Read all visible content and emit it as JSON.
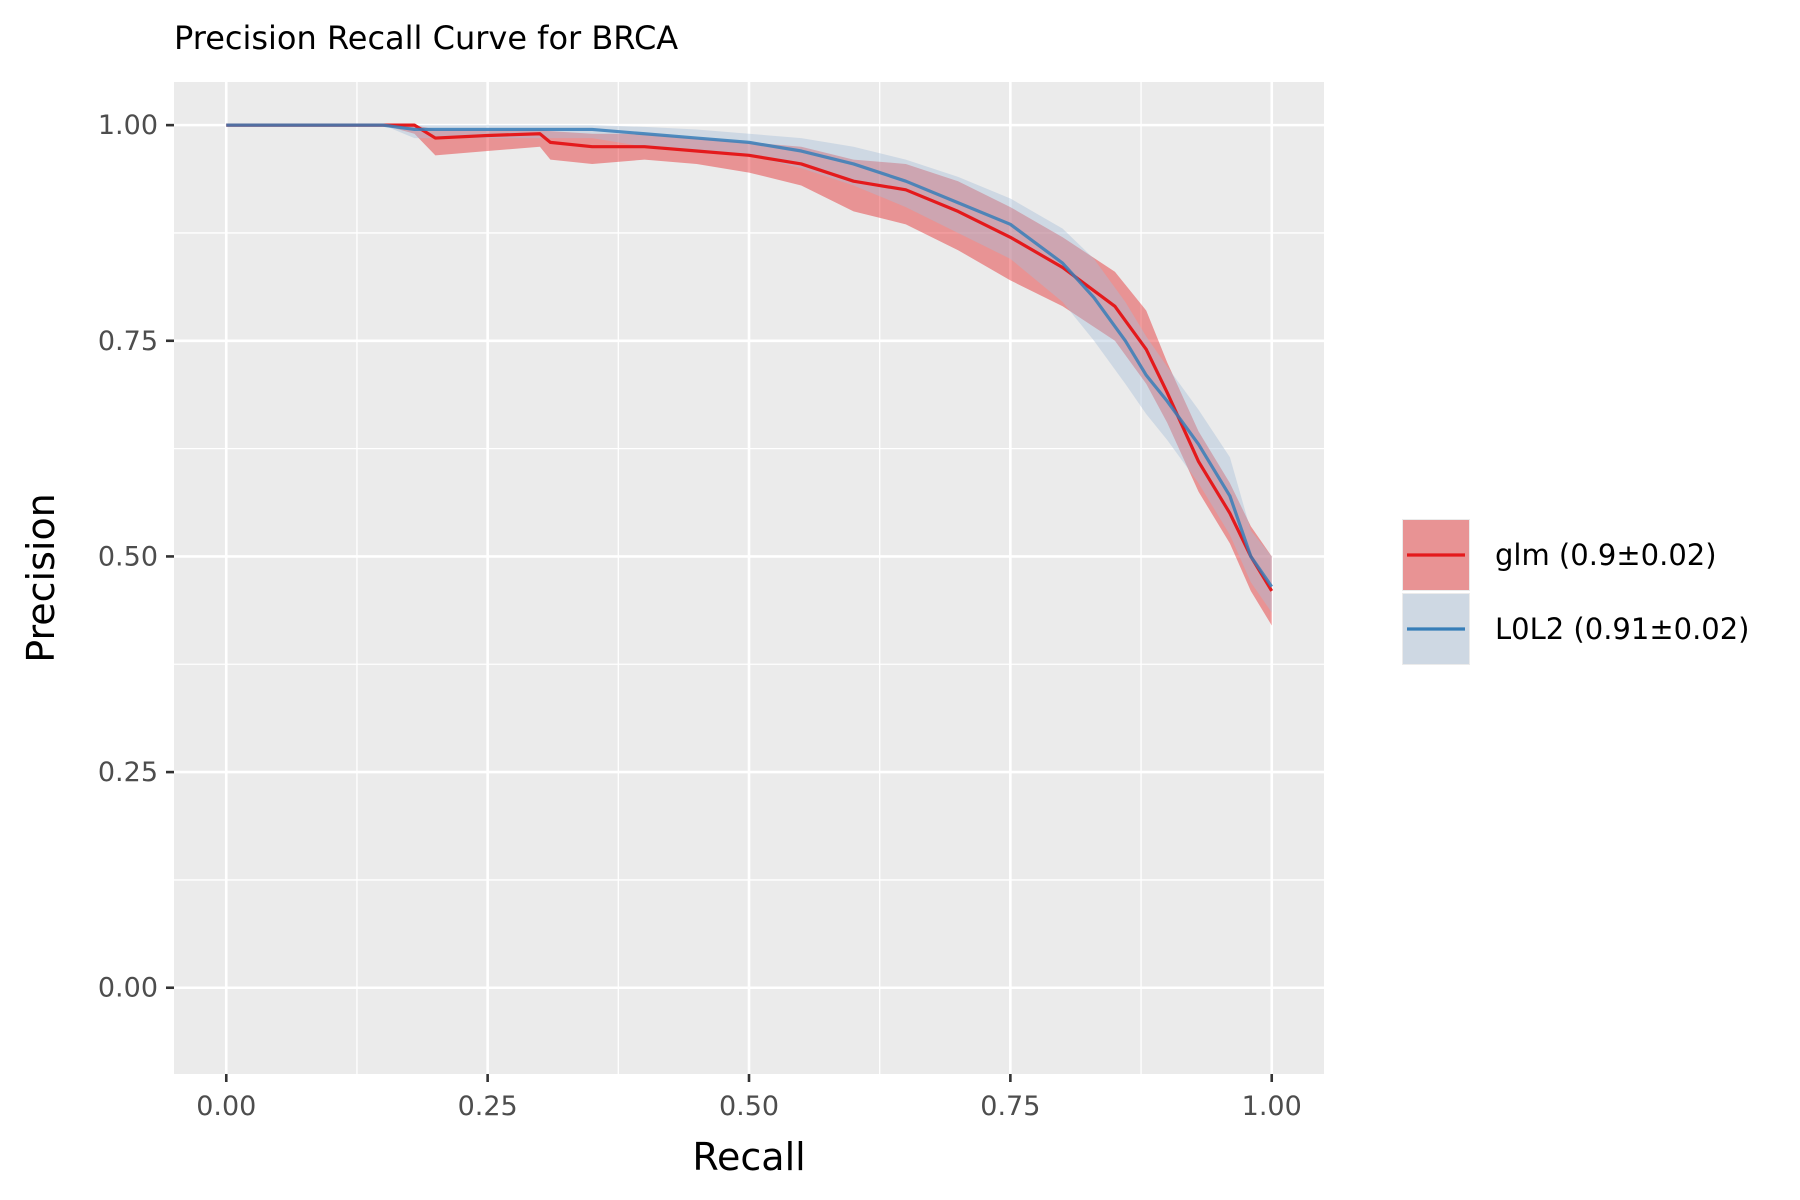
{
  "chart_data": {
    "type": "line",
    "title": "Precision Recall Curve for BRCA",
    "xlabel": "Recall",
    "ylabel": "Precision",
    "xlim": [
      -0.05,
      1.05
    ],
    "ylim": [
      -0.1,
      1.05
    ],
    "x_ticks": [
      0.0,
      0.25,
      0.5,
      0.75,
      1.0
    ],
    "x_tick_labels": [
      "0.00",
      "0.25",
      "0.50",
      "0.75",
      "1.00"
    ],
    "y_ticks": [
      0.0,
      0.25,
      0.5,
      0.75,
      1.0
    ],
    "y_tick_labels": [
      "0.00",
      "0.25",
      "0.50",
      "0.75",
      "1.00"
    ],
    "grid": true,
    "legend_position": "right",
    "series": [
      {
        "name": "glm (0.9±0.02)",
        "color": "#e41a1c",
        "fill": "#e41a1c",
        "x": [
          0.0,
          0.1,
          0.15,
          0.18,
          0.2,
          0.25,
          0.3,
          0.31,
          0.35,
          0.4,
          0.45,
          0.5,
          0.55,
          0.6,
          0.65,
          0.7,
          0.75,
          0.8,
          0.85,
          0.88,
          0.9,
          0.93,
          0.96,
          0.98,
          1.0
        ],
        "y": [
          1.0,
          1.0,
          1.0,
          1.0,
          0.985,
          0.988,
          0.99,
          0.98,
          0.975,
          0.975,
          0.97,
          0.965,
          0.955,
          0.935,
          0.925,
          0.9,
          0.87,
          0.835,
          0.79,
          0.74,
          0.69,
          0.61,
          0.55,
          0.5,
          0.46
        ],
        "lower": [
          1.0,
          1.0,
          1.0,
          0.99,
          0.965,
          0.97,
          0.975,
          0.96,
          0.955,
          0.96,
          0.955,
          0.945,
          0.93,
          0.9,
          0.885,
          0.855,
          0.82,
          0.79,
          0.75,
          0.7,
          0.655,
          0.575,
          0.515,
          0.46,
          0.42
        ],
        "upper": [
          1.0,
          1.0,
          1.0,
          1.0,
          0.995,
          0.995,
          0.995,
          0.993,
          0.99,
          0.99,
          0.985,
          0.98,
          0.975,
          0.96,
          0.955,
          0.935,
          0.905,
          0.87,
          0.83,
          0.785,
          0.725,
          0.645,
          0.585,
          0.535,
          0.5
        ]
      },
      {
        "name": "L0L2 (0.91±0.02)",
        "color": "#377eb8",
        "fill": "#a6bfd8",
        "x": [
          0.0,
          0.1,
          0.15,
          0.18,
          0.2,
          0.25,
          0.3,
          0.35,
          0.4,
          0.45,
          0.5,
          0.55,
          0.6,
          0.65,
          0.7,
          0.75,
          0.8,
          0.83,
          0.86,
          0.88,
          0.9,
          0.93,
          0.96,
          0.98,
          1.0
        ],
        "y": [
          1.0,
          1.0,
          1.0,
          0.995,
          0.995,
          0.995,
          0.995,
          0.995,
          0.99,
          0.985,
          0.98,
          0.97,
          0.955,
          0.935,
          0.91,
          0.885,
          0.84,
          0.8,
          0.75,
          0.71,
          0.68,
          0.63,
          0.57,
          0.5,
          0.465
        ],
        "lower": [
          1.0,
          1.0,
          1.0,
          0.985,
          0.985,
          0.985,
          0.985,
          0.985,
          0.975,
          0.97,
          0.965,
          0.95,
          0.93,
          0.905,
          0.875,
          0.845,
          0.795,
          0.75,
          0.7,
          0.665,
          0.635,
          0.585,
          0.525,
          0.47,
          0.435
        ],
        "upper": [
          1.0,
          1.0,
          1.0,
          1.0,
          1.0,
          1.0,
          1.0,
          1.0,
          0.998,
          0.995,
          0.99,
          0.985,
          0.975,
          0.96,
          0.94,
          0.915,
          0.88,
          0.845,
          0.795,
          0.755,
          0.72,
          0.67,
          0.615,
          0.53,
          0.5
        ]
      }
    ]
  }
}
